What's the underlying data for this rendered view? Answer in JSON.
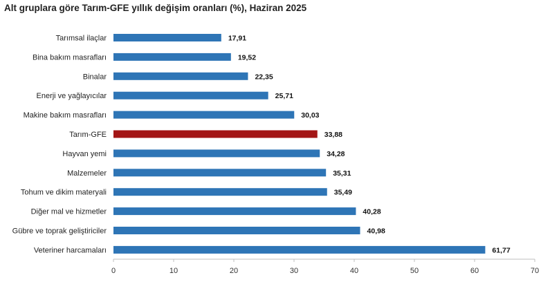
{
  "chart_data": {
    "type": "bar",
    "orientation": "horizontal",
    "title": "Alt gruplara göre Tarım-GFE yıllık değişim oranları (%), Haziran 2025",
    "categories": [
      "Tarımsal ilaçlar",
      "Bina bakım masrafları",
      "Binalar",
      "Enerji  ve yağlayıcılar",
      "Makine bakım masrafları",
      "Tarım-GFE",
      "Hayvan yemi",
      "Malzemeler",
      "Tohum ve dikim materyali",
      "Diğer mal ve hizmetler",
      "Gübre ve toprak geliştiriciler",
      "Veteriner harcamaları"
    ],
    "values": [
      17.91,
      19.52,
      22.35,
      25.71,
      30.03,
      33.88,
      34.28,
      35.31,
      35.49,
      40.28,
      40.98,
      61.77
    ],
    "value_labels": [
      "17,91",
      "19,52",
      "22,35",
      "25,71",
      "30,03",
      "33,88",
      "34,28",
      "35,31",
      "35,49",
      "40,28",
      "40,98",
      "61,77"
    ],
    "xlim": [
      0,
      70
    ],
    "xticks": [
      0,
      10,
      20,
      30,
      40,
      50,
      60,
      70
    ],
    "xlabel": "",
    "ylabel": "",
    "grid": false,
    "colors": {
      "default": "#2E75B6",
      "highlight": "#A31515"
    },
    "highlight_category": "Tarım-GFE"
  }
}
